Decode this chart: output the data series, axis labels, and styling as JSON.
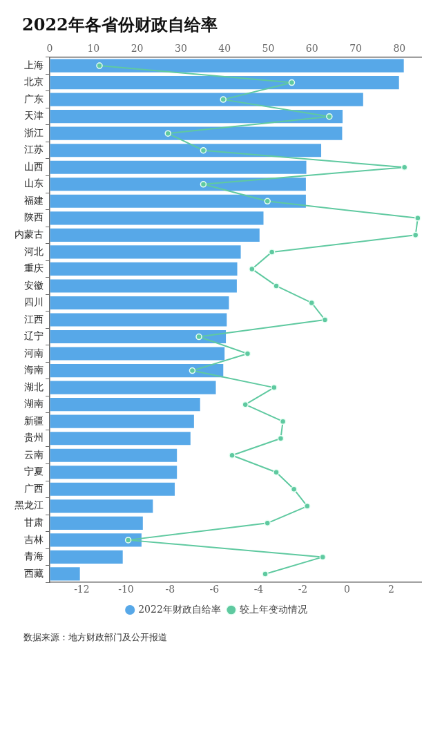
{
  "chart_data": {
    "type": "bar",
    "orientation": "horizontal",
    "title": "2022年各省份财政自给率",
    "categories": [
      "上海",
      "北京",
      "广东",
      "天津",
      "浙江",
      "江苏",
      "山西",
      "山东",
      "福建",
      "陕西",
      "内蒙古",
      "河北",
      "重庆",
      "安徽",
      "四川",
      "江西",
      "辽宁",
      "河南",
      "海南",
      "湖北",
      "湖南",
      "新疆",
      "贵州",
      "云南",
      "宁夏",
      "广西",
      "黑龙江",
      "甘肃",
      "吉林",
      "青海",
      "西藏"
    ],
    "series": [
      {
        "name": "2022年财政自给率",
        "color": "#57a8e8",
        "values": [
          81.0,
          79.9,
          71.7,
          67.0,
          66.9,
          62.1,
          58.7,
          58.6,
          58.6,
          48.9,
          48.0,
          43.7,
          42.9,
          42.8,
          41.0,
          40.5,
          40.3,
          40.0,
          39.7,
          38.0,
          34.4,
          33.0,
          32.2,
          29.1,
          29.1,
          28.6,
          23.6,
          21.3,
          21.0,
          16.7,
          6.9
        ]
      },
      {
        "name": "较上年变动情况",
        "type": "line",
        "axis": "x2",
        "color": "#5fc9a0",
        "values": [
          -11.2,
          -2.5,
          -5.6,
          -0.8,
          -8.1,
          -6.5,
          2.6,
          -6.5,
          -3.6,
          3.2,
          3.1,
          -3.4,
          -4.3,
          -3.2,
          -1.6,
          -1.0,
          -6.7,
          -4.5,
          -7.0,
          -3.3,
          -4.6,
          -2.9,
          -3.0,
          -5.2,
          -3.2,
          -2.4,
          -1.8,
          -3.6,
          -9.9,
          -1.1,
          -3.7
        ]
      }
    ],
    "xlim": [
      0,
      85
    ],
    "xticks": [
      0,
      10,
      20,
      30,
      40,
      50,
      60,
      70,
      80
    ],
    "x2lim": [
      -13.45,
      3.36
    ],
    "x2ticks": [
      -12,
      -10,
      -8,
      -6,
      -4,
      -2,
      0,
      2
    ],
    "legend": "bottom",
    "marker": "circle",
    "annotations": [
      "数据来源：地方财政部门及公开报道"
    ]
  }
}
